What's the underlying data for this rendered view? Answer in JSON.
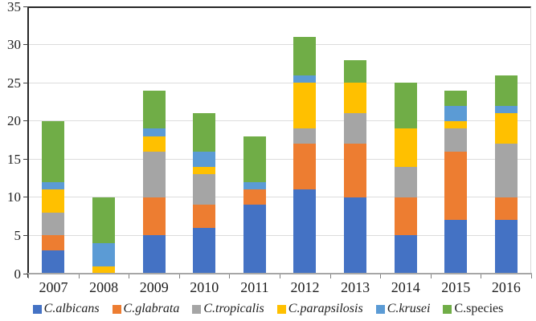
{
  "chart_data": {
    "type": "bar",
    "stacked": true,
    "title": "",
    "xlabel": "",
    "ylabel": "",
    "ylim": [
      0,
      35
    ],
    "y_tick_step": 5,
    "y_tick_labels": [
      "0",
      "5",
      "10",
      "15",
      "20",
      "25",
      "30",
      "35"
    ],
    "grid": true,
    "legend_position": "bottom",
    "categories": [
      "2007",
      "2008",
      "2009",
      "2010",
      "2011",
      "2012",
      "2013",
      "2014",
      "2015",
      "2016"
    ],
    "series": [
      {
        "name": "C.albicans",
        "color": "#4472C4",
        "italic": true,
        "values": [
          3,
          0,
          5,
          6,
          9,
          11,
          10,
          5,
          7,
          7
        ]
      },
      {
        "name": "C.glabrata",
        "color": "#ED7D31",
        "italic": true,
        "values": [
          2,
          0,
          5,
          3,
          2,
          6,
          7,
          5,
          9,
          3
        ]
      },
      {
        "name": "C.tropicalis",
        "color": "#A5A5A5",
        "italic": true,
        "values": [
          3,
          0,
          6,
          4,
          0,
          2,
          4,
          4,
          3,
          7
        ]
      },
      {
        "name": "C.parapsilosis",
        "color": "#FFC000",
        "italic": true,
        "values": [
          3,
          1,
          2,
          1,
          0,
          6,
          4,
          5,
          1,
          4
        ]
      },
      {
        "name": "C.krusei",
        "color": "#5B9BD5",
        "italic": true,
        "values": [
          1,
          3,
          1,
          2,
          1,
          1,
          0,
          0,
          2,
          1
        ]
      },
      {
        "name": "C.species",
        "color": "#70AD47",
        "italic": false,
        "values": [
          8,
          6,
          5,
          5,
          6,
          5,
          3,
          6,
          2,
          4
        ]
      }
    ],
    "totals": [
      20,
      10,
      24,
      21,
      18,
      31,
      28,
      25,
      24,
      26
    ]
  },
  "colors": {
    "gridline": "#DCDCDC",
    "axis_dark": "#262626",
    "axis_bottom": "#A6A6A6",
    "tick": "#808080",
    "text": "#1F1F1F"
  }
}
